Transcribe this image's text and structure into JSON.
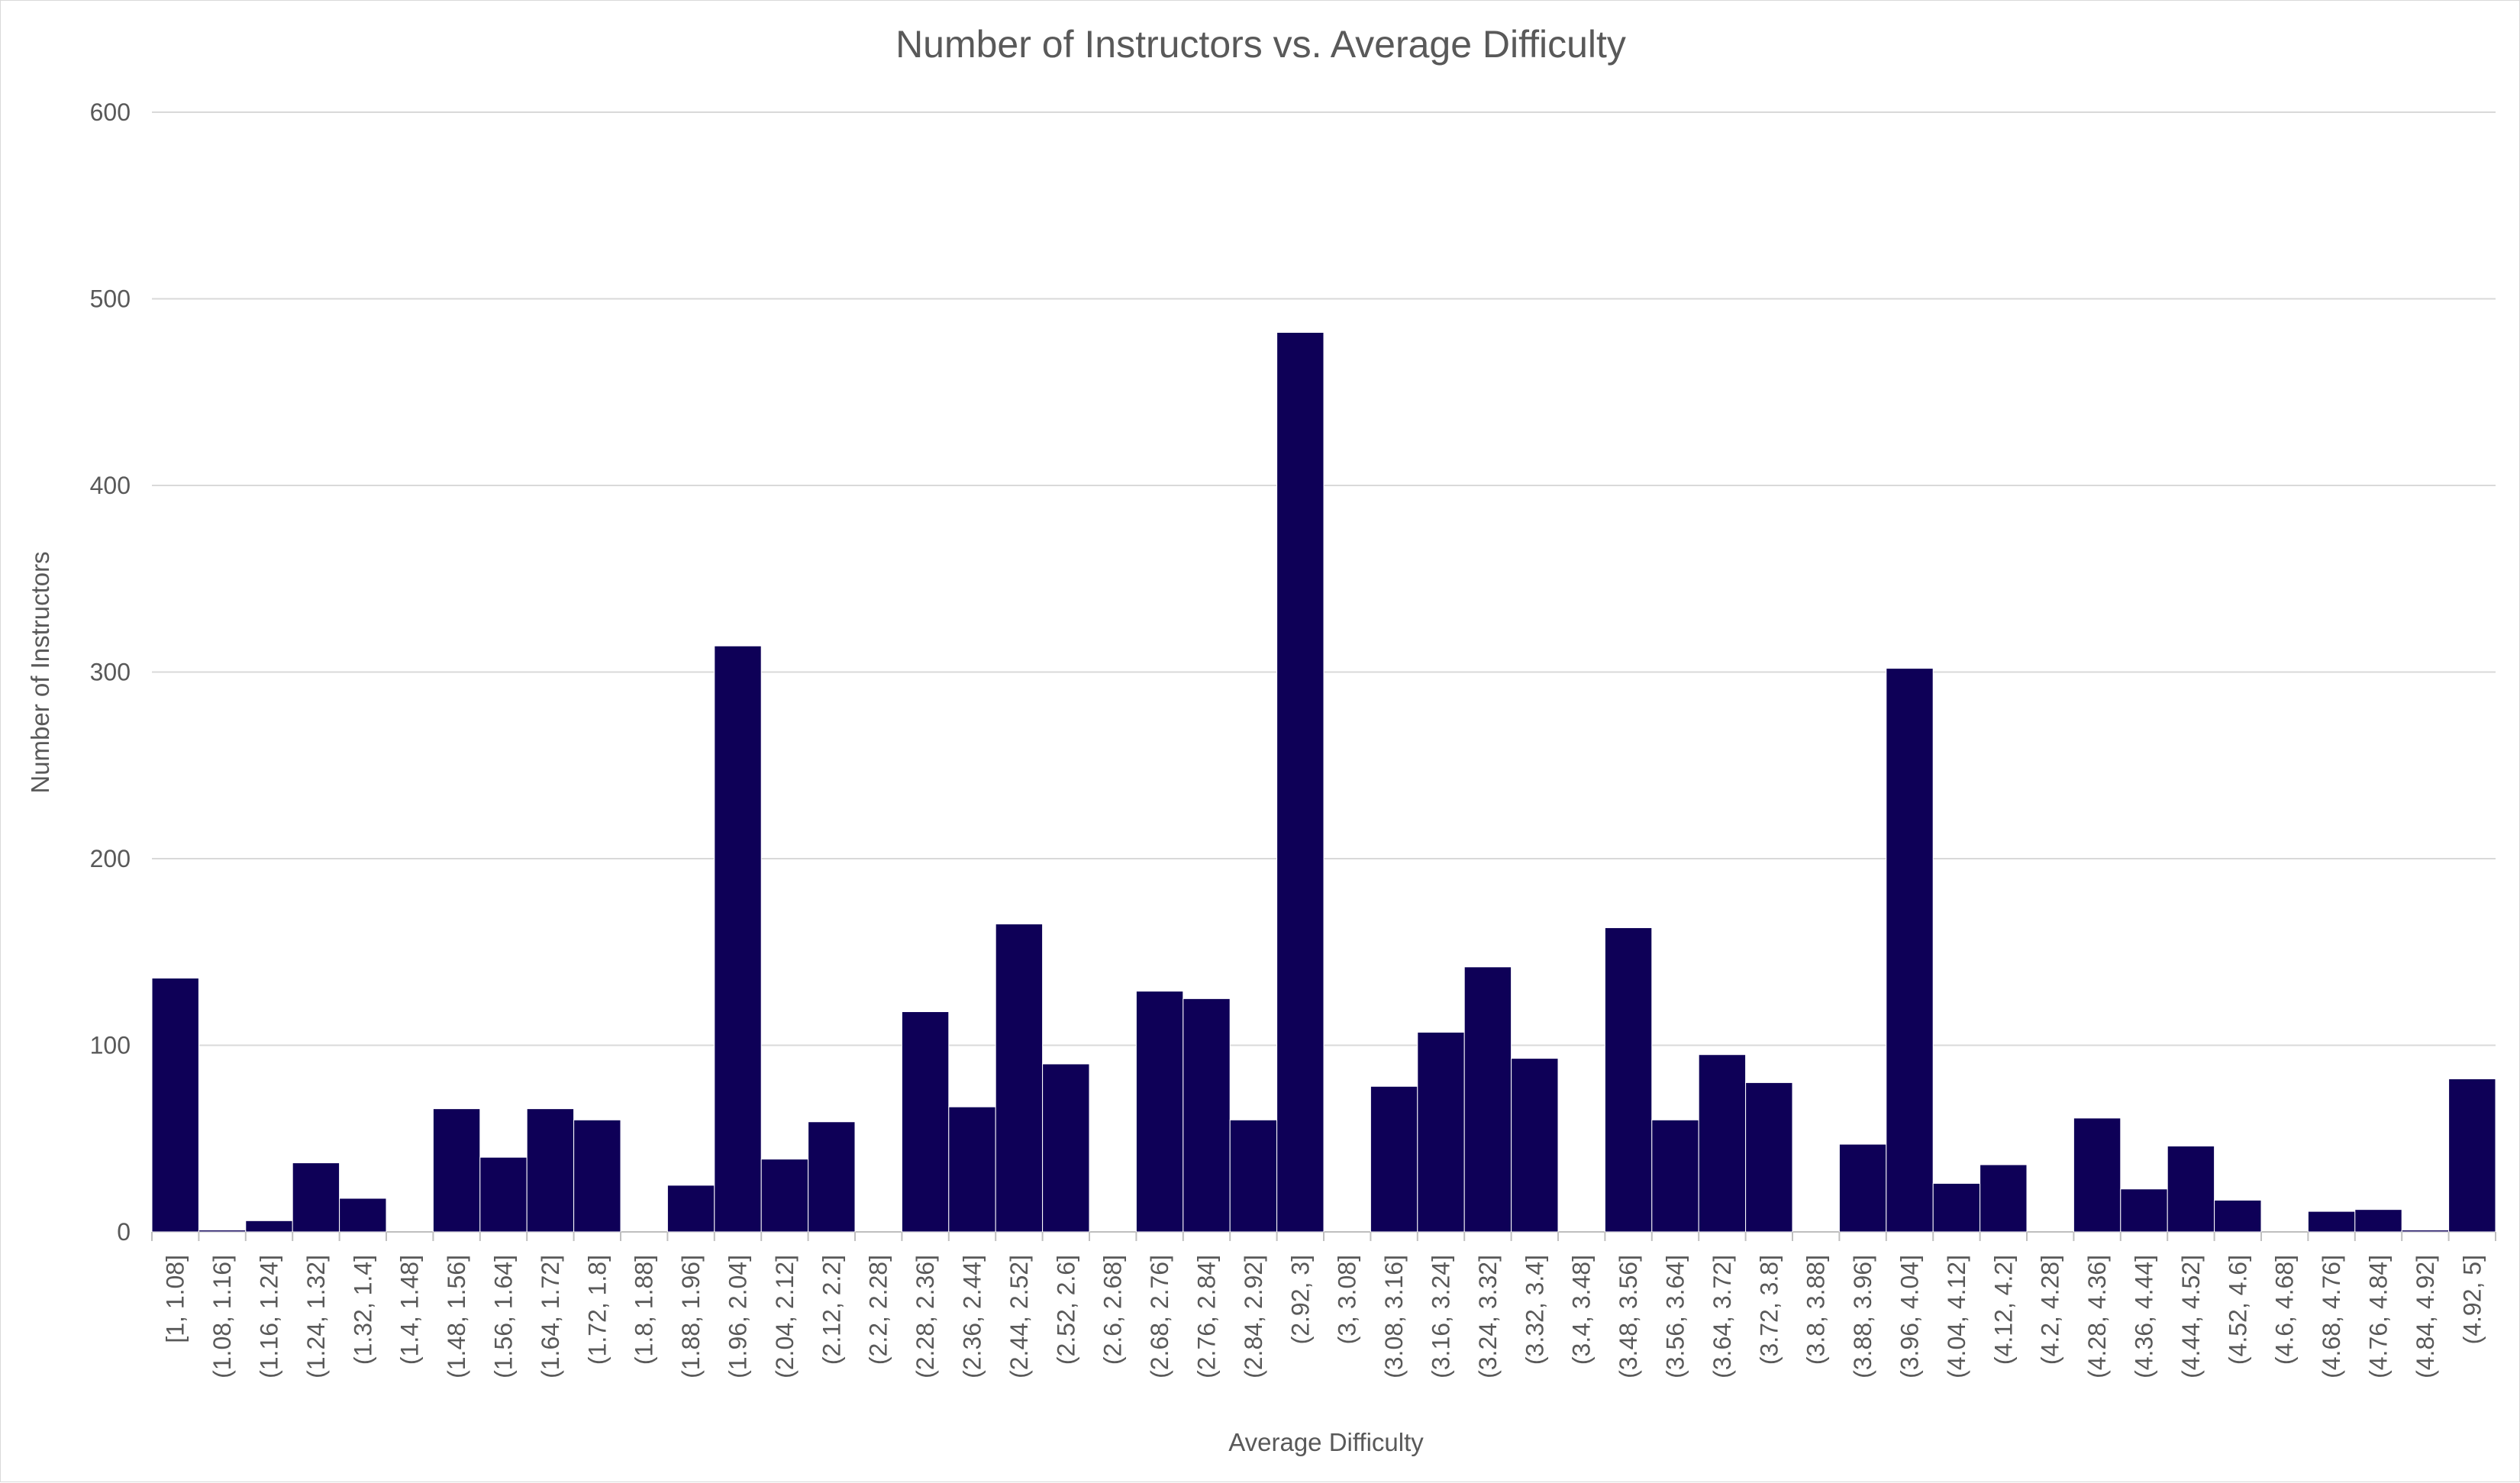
{
  "chart_data": {
    "type": "bar",
    "title": "Number of Instructors vs. Average Difficulty",
    "xlabel": "Average Difficulty",
    "ylabel": "Number of Instructors",
    "ylim": [
      0,
      600
    ],
    "y_ticks": [
      "0",
      "100",
      "200",
      "300",
      "400",
      "500",
      "600"
    ],
    "grid": true,
    "legend": "none",
    "bar_color": "#0e0057",
    "categories": [
      "[1, 1.08]",
      "(1.08, 1.16]",
      "(1.16, 1.24]",
      "(1.24, 1.32]",
      "(1.32, 1.4]",
      "(1.4, 1.48]",
      "(1.48, 1.56]",
      "(1.56, 1.64]",
      "(1.64, 1.72]",
      "(1.72, 1.8]",
      "(1.8, 1.88]",
      "(1.88, 1.96]",
      "(1.96, 2.04]",
      "(2.04, 2.12]",
      "(2.12, 2.2]",
      "(2.2, 2.28]",
      "(2.28, 2.36]",
      "(2.36, 2.44]",
      "(2.44, 2.52]",
      "(2.52, 2.6]",
      "(2.6, 2.68]",
      "(2.68, 2.76]",
      "(2.76, 2.84]",
      "(2.84, 2.92]",
      "(2.92, 3]",
      "(3, 3.08]",
      "(3.08, 3.16]",
      "(3.16, 3.24]",
      "(3.24, 3.32]",
      "(3.32, 3.4]",
      "(3.4, 3.48]",
      "(3.48, 3.56]",
      "(3.56, 3.64]",
      "(3.64, 3.72]",
      "(3.72, 3.8]",
      "(3.8, 3.88]",
      "(3.88, 3.96]",
      "(3.96, 4.04]",
      "(4.04, 4.12]",
      "(4.12, 4.2]",
      "(4.2, 4.28]",
      "(4.28, 4.36]",
      "(4.36, 4.44]",
      "(4.44, 4.52]",
      "(4.52, 4.6]",
      "(4.6, 4.68]",
      "(4.68, 4.76]",
      "(4.76, 4.84]",
      "(4.84, 4.92]",
      "(4.92, 5]"
    ],
    "values": [
      136,
      1,
      6,
      37,
      18,
      0,
      66,
      40,
      66,
      60,
      0,
      25,
      314,
      39,
      59,
      0,
      118,
      67,
      165,
      90,
      0,
      129,
      125,
      60,
      482,
      0,
      78,
      107,
      142,
      93,
      0,
      163,
      60,
      95,
      80,
      0,
      47,
      302,
      26,
      36,
      0,
      61,
      23,
      46,
      17,
      0,
      11,
      12,
      1,
      82
    ]
  }
}
